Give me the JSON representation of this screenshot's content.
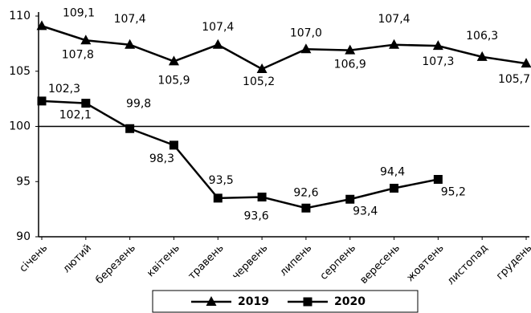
{
  "chart_data": {
    "type": "line",
    "categories": [
      "січень",
      "лютий",
      "березень",
      "квітень",
      "травень",
      "червень",
      "липень",
      "серпень",
      "вересень",
      "жовтень",
      "листопад",
      "грудень"
    ],
    "series": [
      {
        "name": "2019",
        "color": "#000000",
        "marker": "triangle",
        "values": [
          109.1,
          107.8,
          107.4,
          105.9,
          107.4,
          105.2,
          107.0,
          106.9,
          107.4,
          107.3,
          106.3,
          105.7
        ],
        "value_labels": [
          "109,1",
          "107,8",
          "107,4",
          "105,9",
          "107,4",
          "105,2",
          "107,0",
          "106,9",
          "107,4",
          "107,3",
          "106,3",
          "105,7"
        ]
      },
      {
        "name": "2020",
        "color": "#000000",
        "marker": "square",
        "values": [
          102.3,
          102.1,
          99.8,
          98.3,
          93.5,
          93.6,
          92.6,
          93.4,
          94.4,
          95.2,
          null,
          null
        ],
        "value_labels": [
          "102,3",
          "102,1",
          "99,8",
          "98,3",
          "93,5",
          "93,6",
          "92,6",
          "93,4",
          "94,4",
          "95,2",
          null,
          null
        ]
      }
    ],
    "ylim": [
      90,
      110
    ],
    "yticks": [
      90,
      95,
      100,
      105,
      110
    ],
    "reference_line": 100,
    "legend": "bottom"
  }
}
